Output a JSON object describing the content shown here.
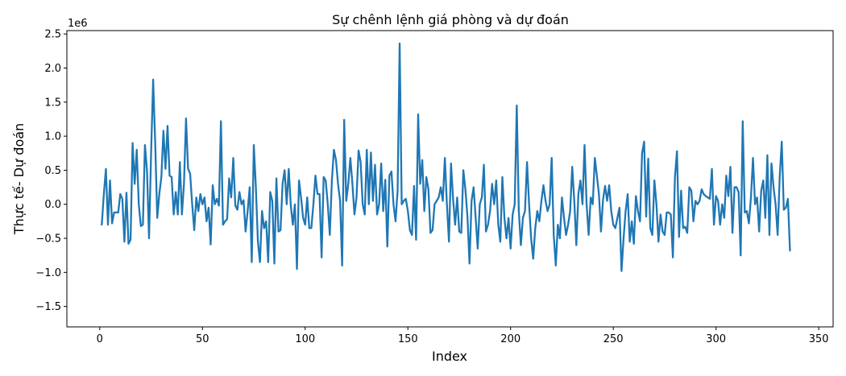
{
  "chart_data": {
    "type": "line",
    "title": "Sự chênh lệnh giá phòng và dự đoán",
    "xlabel": "Index",
    "ylabel": "Thực tế- Dự đoán",
    "y_offset_label": "1e6",
    "xlim": [
      -16,
      357
    ],
    "ylim": [
      -1.8,
      2.55
    ],
    "y_scale_multiplier": 1000000,
    "x_ticks": [
      0,
      50,
      100,
      150,
      200,
      250,
      300,
      350
    ],
    "x_tick_labels": [
      "0",
      "50",
      "100",
      "150",
      "200",
      "250",
      "300",
      "350"
    ],
    "y_ticks": [
      -1.5,
      -1.0,
      -0.5,
      0.0,
      0.5,
      1.0,
      1.5,
      2.0,
      2.5
    ],
    "y_tick_labels": [
      "−1.5",
      "−1.0",
      "−0.5",
      "0.0",
      "0.5",
      "1.0",
      "1.5",
      "2.0",
      "2.5"
    ],
    "grid": false,
    "line_color": "#1f77b4",
    "series": [
      {
        "x_start": 1,
        "x_step": 1,
        "values": [
          -0.3,
          0.15,
          0.52,
          -0.3,
          0.35,
          -0.28,
          -0.12,
          -0.12,
          -0.12,
          0.15,
          0.08,
          -0.55,
          0.17,
          -0.58,
          -0.52,
          0.9,
          0.3,
          0.8,
          0.0,
          -0.32,
          -0.3,
          0.87,
          0.5,
          -0.5,
          0.75,
          1.83,
          0.9,
          -0.2,
          0.15,
          0.4,
          1.08,
          0.52,
          1.15,
          0.42,
          0.4,
          -0.15,
          0.18,
          -0.15,
          0.62,
          -0.15,
          0.3,
          1.26,
          0.52,
          0.45,
          0.0,
          -0.38,
          0.1,
          -0.1,
          0.15,
          0.0,
          0.1,
          -0.25,
          -0.05,
          -0.59,
          0.28,
          0.0,
          0.08,
          -0.02,
          1.22,
          -0.3,
          -0.25,
          -0.22,
          0.38,
          0.1,
          0.68,
          -0.02,
          -0.08,
          0.18,
          0.0,
          0.06,
          -0.4,
          -0.1,
          0.25,
          -0.85,
          0.87,
          0.25,
          -0.55,
          -0.85,
          -0.1,
          -0.35,
          -0.25,
          -0.85,
          0.18,
          0.05,
          -0.87,
          0.38,
          -0.4,
          -0.38,
          0.3,
          0.5,
          0.0,
          0.52,
          -0.02,
          -0.3,
          0.0,
          -0.95,
          0.35,
          0.1,
          -0.2,
          -0.3,
          0.1,
          -0.35,
          -0.35,
          0.0,
          0.42,
          0.15,
          0.15,
          -0.78,
          0.4,
          0.35,
          0.0,
          -0.45,
          0.35,
          0.8,
          0.65,
          0.3,
          0.05,
          -0.9,
          1.24,
          0.05,
          0.3,
          0.68,
          0.3,
          -0.15,
          0.1,
          0.79,
          0.62,
          0.0,
          -0.15,
          0.8,
          0.0,
          0.76,
          0.05,
          0.58,
          -0.15,
          0.0,
          0.6,
          -0.1,
          0.36,
          -0.62,
          0.42,
          0.48,
          0.0,
          -0.25,
          0.2,
          2.36,
          0.0,
          0.05,
          0.08,
          -0.1,
          -0.38,
          -0.45,
          0.27,
          -0.52,
          1.32,
          0.3,
          0.65,
          -0.1,
          0.4,
          0.22,
          -0.42,
          -0.38,
          0.0,
          0.05,
          0.1,
          0.25,
          0.05,
          0.68,
          0.0,
          -0.55,
          0.6,
          0.08,
          -0.3,
          0.1,
          -0.4,
          -0.42,
          0.5,
          0.22,
          -0.18,
          -0.87,
          0.05,
          0.25,
          -0.2,
          -0.65,
          0.0,
          0.1,
          0.58,
          -0.4,
          -0.3,
          -0.1,
          0.3,
          0.0,
          0.35,
          -0.3,
          -0.55,
          0.4,
          -0.2,
          -0.5,
          -0.2,
          -0.65,
          -0.15,
          0.0,
          1.45,
          -0.1,
          -0.6,
          -0.2,
          -0.1,
          0.62,
          0.0,
          -0.5,
          -0.8,
          -0.35,
          -0.1,
          -0.25,
          0.05,
          0.28,
          0.05,
          -0.1,
          0.0,
          0.68,
          -0.45,
          -0.9,
          -0.3,
          -0.5,
          0.1,
          -0.2,
          -0.45,
          -0.3,
          -0.1,
          0.55,
          0.05,
          -0.6,
          0.15,
          0.35,
          0.0,
          0.87,
          0.0,
          -0.45,
          0.1,
          0.0,
          0.68,
          0.42,
          0.15,
          -0.4,
          0.07,
          0.27,
          0.05,
          0.28,
          -0.1,
          -0.3,
          -0.35,
          -0.2,
          -0.05,
          -0.98,
          -0.5,
          -0.1,
          0.15,
          -0.55,
          -0.25,
          -0.58,
          0.12,
          -0.1,
          -0.25,
          0.75,
          0.92,
          -0.18,
          0.67,
          -0.35,
          -0.45,
          0.35,
          0.0,
          -0.55,
          -0.15,
          -0.4,
          -0.45,
          -0.12,
          -0.12,
          -0.15,
          -0.78,
          0.4,
          0.78,
          -0.48,
          0.2,
          -0.35,
          -0.33,
          -0.42,
          0.25,
          0.2,
          -0.25,
          0.05,
          0.0,
          0.05,
          0.22,
          0.15,
          0.12,
          0.1,
          0.08,
          0.52,
          -0.3,
          0.12,
          0.05,
          -0.3,
          0.0,
          -0.2,
          0.42,
          0.12,
          0.55,
          -0.42,
          0.25,
          0.25,
          0.18,
          -0.75,
          1.22,
          -0.12,
          -0.1,
          -0.28,
          0.1,
          0.68,
          0.0,
          0.1,
          -0.4,
          0.2,
          0.35,
          -0.2,
          0.72,
          -0.45,
          0.6,
          0.25,
          0.0,
          -0.45,
          0.4,
          0.92,
          -0.08,
          -0.05,
          0.08,
          -0.68
        ]
      }
    ]
  }
}
